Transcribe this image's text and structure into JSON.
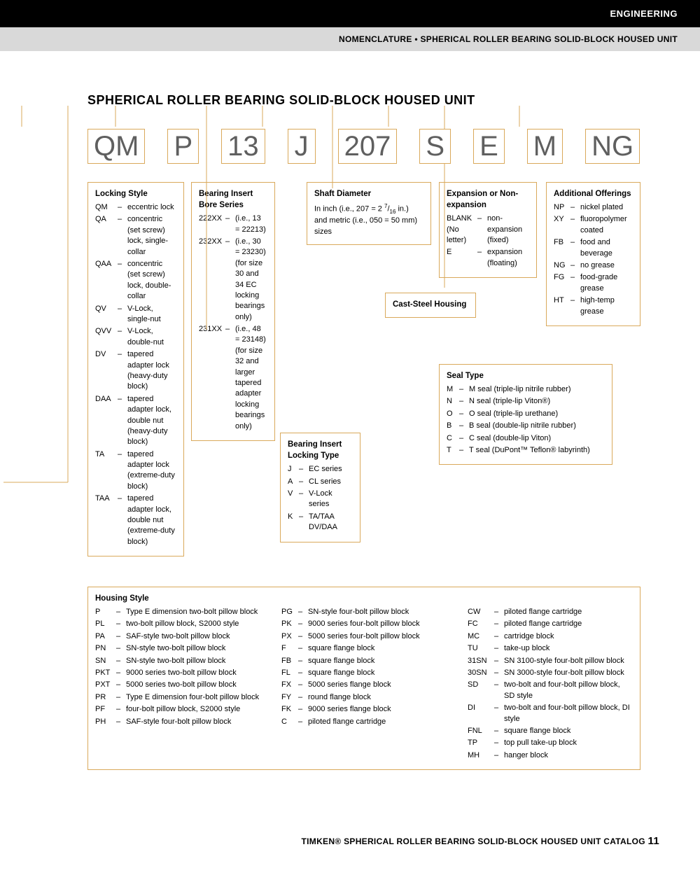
{
  "header": {
    "black": "ENGINEERING",
    "gray": "NOMENCLATURE • SPHERICAL ROLLER BEARING SOLID-BLOCK HOUSED UNIT"
  },
  "title": "SPHERICAL ROLLER BEARING SOLID-BLOCK HOUSED UNIT",
  "code_parts": [
    "QM",
    "P",
    "13",
    "J",
    "207",
    "S",
    "E",
    "M",
    "NG"
  ],
  "boxes": {
    "locking_style": {
      "title": "Locking Style",
      "items": [
        [
          "QM",
          "eccentric lock"
        ],
        [
          "QA",
          "concentric (set screw) lock, single-collar"
        ],
        [
          "QAA",
          "concentric (set screw) lock, double-collar"
        ],
        [
          "QV",
          "V-Lock, single-nut"
        ],
        [
          "QVV",
          "V-Lock, double-nut"
        ],
        [
          "DV",
          "tapered adapter lock (heavy-duty block)"
        ],
        [
          "DAA",
          "tapered adapter lock, double nut (heavy-duty block)"
        ],
        [
          "TA",
          "tapered adapter lock (extreme-duty block)"
        ],
        [
          "TAA",
          "tapered adapter lock, double nut (extreme-duty block)"
        ]
      ]
    },
    "bore_series": {
      "title": "Bearing Insert Bore Series",
      "items": [
        [
          "222XX",
          "(i.e., 13 = 22213)"
        ],
        [
          "232XX",
          "(i.e., 30 = 23230) (for size 30 and 34 EC locking bearings only)"
        ],
        [
          "231XX",
          "(i.e., 48 = 23148) (for size 32 and larger tapered adapter locking bearings only)"
        ]
      ]
    },
    "locking_type": {
      "title": "Bearing Insert Locking Type",
      "items": [
        [
          "J",
          "EC series"
        ],
        [
          "A",
          "CL series"
        ],
        [
          "V",
          "V-Lock series"
        ],
        [
          "K",
          "TA/TAA DV/DAA"
        ]
      ]
    },
    "shaft": {
      "title": "Shaft Diameter",
      "text": "In inch (i.e., 207 = 2 7/16 in.) and metric (i.e., 050 = 50 mm) sizes"
    },
    "cast": {
      "title": "Cast-Steel Housing"
    },
    "expansion": {
      "title": "Expansion or Non-expansion",
      "items": [
        [
          "BLANK (No letter)",
          "non-expansion (fixed)"
        ],
        [
          "E",
          "expansion (floating)"
        ]
      ]
    },
    "seal": {
      "title": "Seal Type",
      "items": [
        [
          "M",
          "M seal (triple-lip nitrile rubber)"
        ],
        [
          "N",
          "N seal (triple-lip Viton®)"
        ],
        [
          "O",
          "O seal (triple-lip urethane)"
        ],
        [
          "B",
          "B seal (double-lip nitrile rubber)"
        ],
        [
          "C",
          "C seal (double-lip Viton)"
        ],
        [
          "T",
          "T seal (DuPont™ Teflon® labyrinth)"
        ]
      ]
    },
    "additional": {
      "title": "Additional Offerings",
      "items": [
        [
          "NP",
          "nickel plated"
        ],
        [
          "XY",
          "fluoropolymer coated"
        ],
        [
          "FB",
          "food and beverage"
        ],
        [
          "NG",
          "no grease"
        ],
        [
          "FG",
          "food-grade grease"
        ],
        [
          "HT",
          "high-temp grease"
        ]
      ]
    },
    "housing": {
      "title": "Housing Style",
      "col1": [
        [
          "P",
          "Type E dimension two-bolt pillow block"
        ],
        [
          "PL",
          "two-bolt pillow block, S2000 style"
        ],
        [
          "PA",
          "SAF-style two-bolt pillow block"
        ],
        [
          "PN",
          "SN-style two-bolt pillow block"
        ],
        [
          "SN",
          "SN-style two-bolt pillow block"
        ],
        [
          "PKT",
          "9000 series two-bolt pillow block"
        ],
        [
          "PXT",
          "5000 series two-bolt pillow block"
        ],
        [
          "PR",
          "Type E dimension four-bolt pillow block"
        ],
        [
          "PF",
          "four-bolt pillow block, S2000 style"
        ],
        [
          "PH",
          "SAF-style four-bolt pillow block"
        ]
      ],
      "col2": [
        [
          "PG",
          "SN-style four-bolt pillow block"
        ],
        [
          "PK",
          "9000 series four-bolt pillow block"
        ],
        [
          "PX",
          "5000 series four-bolt pillow block"
        ],
        [
          "F",
          "square flange block"
        ],
        [
          "FB",
          "square flange block"
        ],
        [
          "FL",
          "square flange block"
        ],
        [
          "FX",
          "5000 series flange block"
        ],
        [
          "FY",
          "round flange block"
        ],
        [
          "FK",
          "9000 series flange block"
        ],
        [
          "C",
          "piloted flange cartridge"
        ]
      ],
      "col3": [
        [
          "CW",
          "piloted flange cartridge"
        ],
        [
          "FC",
          "piloted flange cartridge"
        ],
        [
          "MC",
          "cartridge block"
        ],
        [
          "TU",
          "take-up block"
        ],
        [
          "31SN",
          "SN 3100-style four-bolt pillow block"
        ],
        [
          "30SN",
          "SN 3000-style four-bolt pillow block"
        ],
        [
          "SD",
          "two-bolt and four-bolt pillow block, SD style"
        ],
        [
          "DI",
          "two-bolt and four-bolt pillow block, DI style"
        ],
        [
          "FNL",
          "square flange block"
        ],
        [
          "TP",
          "top pull take-up block"
        ],
        [
          "MH",
          "hanger block"
        ]
      ]
    }
  },
  "footer": {
    "text": "TIMKEN® SPHERICAL ROLLER BEARING SOLID-BLOCK HOUSED UNIT CATALOG",
    "page": "11"
  },
  "colors": {
    "box_border": "#d9a95b",
    "code_text": "#5f5f5f",
    "gray_bar": "#d9d9d9"
  }
}
